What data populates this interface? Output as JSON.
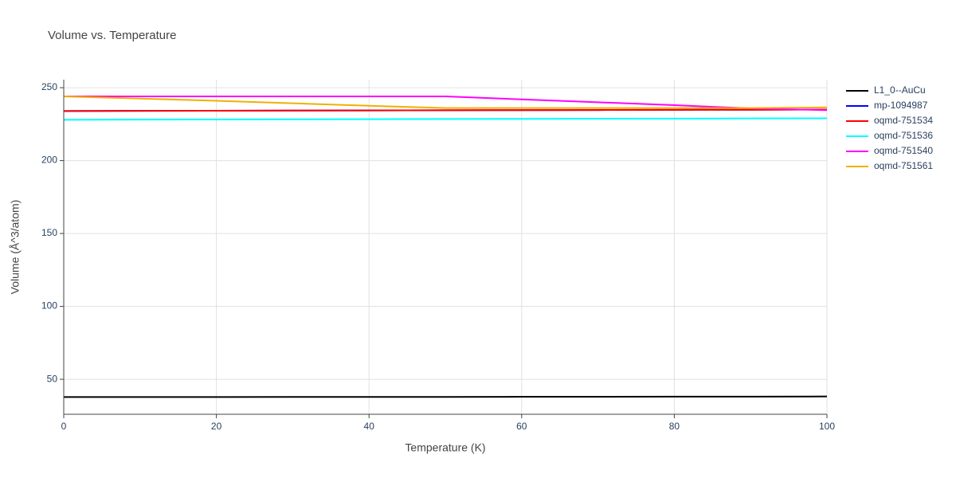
{
  "chart_data": {
    "type": "line",
    "title": "Volume vs. Temperature",
    "x_label": "Temperature (K)",
    "y_label": "Volume (Å^3/atom)",
    "x": [
      0,
      10,
      20,
      30,
      40,
      50,
      60,
      70,
      80,
      90,
      100
    ],
    "series": [
      {
        "name": "L1_0--AuCu",
        "color": "#000000",
        "values": [
          37.8,
          37.8,
          37.8,
          37.9,
          37.9,
          37.9,
          38.0,
          38.0,
          38.1,
          38.1,
          38.2
        ]
      },
      {
        "name": "mp-1094987",
        "color": "#0000ff",
        "values": [
          234.0,
          234.1,
          234.2,
          234.3,
          234.4,
          234.5,
          234.6,
          234.7,
          234.8,
          234.9,
          235.0
        ]
      },
      {
        "name": "oqmd-751534",
        "color": "#ff0000",
        "values": [
          234.0,
          234.1,
          234.2,
          234.3,
          234.4,
          234.5,
          234.6,
          234.7,
          234.8,
          234.9,
          235.0
        ]
      },
      {
        "name": "oqmd-751536",
        "color": "#00ffff",
        "values": [
          228.0,
          228.1,
          228.2,
          228.3,
          228.4,
          228.5,
          228.6,
          228.7,
          228.8,
          228.9,
          229.0
        ]
      },
      {
        "name": "oqmd-751540",
        "color": "#ff00ff",
        "values": [
          244.0,
          244.0,
          244.0,
          244.0,
          244.0,
          244.0,
          242.0,
          240.0,
          238.0,
          235.8,
          234.6
        ]
      },
      {
        "name": "oqmd-751561",
        "color": "#f0b000",
        "values": [
          244.0,
          242.5,
          241.0,
          239.3,
          237.6,
          236.0,
          236.0,
          236.0,
          236.0,
          236.0,
          236.5
        ]
      }
    ],
    "xlim": [
      0,
      100
    ],
    "xticks": [
      0,
      20,
      40,
      60,
      80,
      100
    ],
    "ylim": [
      26,
      255.5
    ],
    "yticks": [
      50,
      100,
      150,
      200,
      250
    ],
    "grid": true,
    "legend": "right"
  }
}
